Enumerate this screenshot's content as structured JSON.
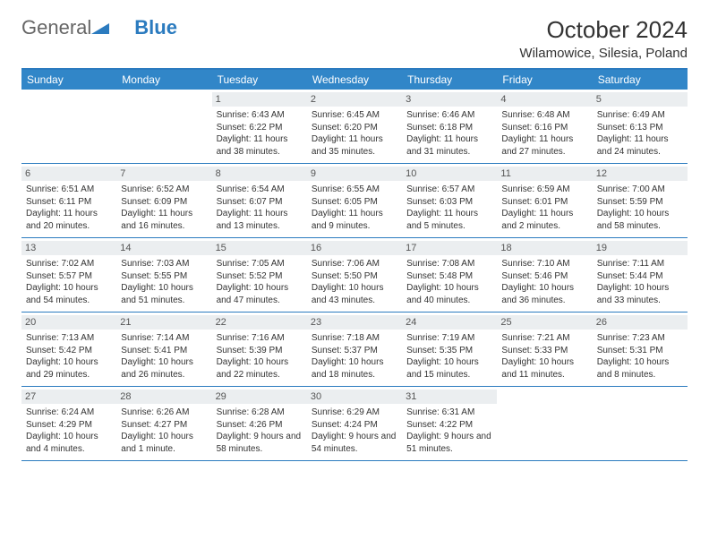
{
  "logo": {
    "text1": "General",
    "text2": "Blue"
  },
  "title": {
    "month": "October 2024",
    "location": "Wilamowice, Silesia, Poland"
  },
  "colors": {
    "header_bg": "#3186c8",
    "border": "#2b7bbf",
    "daynum_bg": "#ebeef0",
    "text": "#333333",
    "logo_gray": "#666666",
    "logo_blue": "#2b7bbf",
    "background": "#ffffff"
  },
  "typography": {
    "title_fontsize": 26,
    "location_fontsize": 15,
    "dayhead_fontsize": 12,
    "daynum_fontsize": 11,
    "info_fontsize": 10
  },
  "day_names": [
    "Sunday",
    "Monday",
    "Tuesday",
    "Wednesday",
    "Thursday",
    "Friday",
    "Saturday"
  ],
  "weeks": [
    [
      {
        "n": "",
        "sr": "",
        "ss": "",
        "dl": ""
      },
      {
        "n": "",
        "sr": "",
        "ss": "",
        "dl": ""
      },
      {
        "n": "1",
        "sr": "Sunrise: 6:43 AM",
        "ss": "Sunset: 6:22 PM",
        "dl": "Daylight: 11 hours and 38 minutes."
      },
      {
        "n": "2",
        "sr": "Sunrise: 6:45 AM",
        "ss": "Sunset: 6:20 PM",
        "dl": "Daylight: 11 hours and 35 minutes."
      },
      {
        "n": "3",
        "sr": "Sunrise: 6:46 AM",
        "ss": "Sunset: 6:18 PM",
        "dl": "Daylight: 11 hours and 31 minutes."
      },
      {
        "n": "4",
        "sr": "Sunrise: 6:48 AM",
        "ss": "Sunset: 6:16 PM",
        "dl": "Daylight: 11 hours and 27 minutes."
      },
      {
        "n": "5",
        "sr": "Sunrise: 6:49 AM",
        "ss": "Sunset: 6:13 PM",
        "dl": "Daylight: 11 hours and 24 minutes."
      }
    ],
    [
      {
        "n": "6",
        "sr": "Sunrise: 6:51 AM",
        "ss": "Sunset: 6:11 PM",
        "dl": "Daylight: 11 hours and 20 minutes."
      },
      {
        "n": "7",
        "sr": "Sunrise: 6:52 AM",
        "ss": "Sunset: 6:09 PM",
        "dl": "Daylight: 11 hours and 16 minutes."
      },
      {
        "n": "8",
        "sr": "Sunrise: 6:54 AM",
        "ss": "Sunset: 6:07 PM",
        "dl": "Daylight: 11 hours and 13 minutes."
      },
      {
        "n": "9",
        "sr": "Sunrise: 6:55 AM",
        "ss": "Sunset: 6:05 PM",
        "dl": "Daylight: 11 hours and 9 minutes."
      },
      {
        "n": "10",
        "sr": "Sunrise: 6:57 AM",
        "ss": "Sunset: 6:03 PM",
        "dl": "Daylight: 11 hours and 5 minutes."
      },
      {
        "n": "11",
        "sr": "Sunrise: 6:59 AM",
        "ss": "Sunset: 6:01 PM",
        "dl": "Daylight: 11 hours and 2 minutes."
      },
      {
        "n": "12",
        "sr": "Sunrise: 7:00 AM",
        "ss": "Sunset: 5:59 PM",
        "dl": "Daylight: 10 hours and 58 minutes."
      }
    ],
    [
      {
        "n": "13",
        "sr": "Sunrise: 7:02 AM",
        "ss": "Sunset: 5:57 PM",
        "dl": "Daylight: 10 hours and 54 minutes."
      },
      {
        "n": "14",
        "sr": "Sunrise: 7:03 AM",
        "ss": "Sunset: 5:55 PM",
        "dl": "Daylight: 10 hours and 51 minutes."
      },
      {
        "n": "15",
        "sr": "Sunrise: 7:05 AM",
        "ss": "Sunset: 5:52 PM",
        "dl": "Daylight: 10 hours and 47 minutes."
      },
      {
        "n": "16",
        "sr": "Sunrise: 7:06 AM",
        "ss": "Sunset: 5:50 PM",
        "dl": "Daylight: 10 hours and 43 minutes."
      },
      {
        "n": "17",
        "sr": "Sunrise: 7:08 AM",
        "ss": "Sunset: 5:48 PM",
        "dl": "Daylight: 10 hours and 40 minutes."
      },
      {
        "n": "18",
        "sr": "Sunrise: 7:10 AM",
        "ss": "Sunset: 5:46 PM",
        "dl": "Daylight: 10 hours and 36 minutes."
      },
      {
        "n": "19",
        "sr": "Sunrise: 7:11 AM",
        "ss": "Sunset: 5:44 PM",
        "dl": "Daylight: 10 hours and 33 minutes."
      }
    ],
    [
      {
        "n": "20",
        "sr": "Sunrise: 7:13 AM",
        "ss": "Sunset: 5:42 PM",
        "dl": "Daylight: 10 hours and 29 minutes."
      },
      {
        "n": "21",
        "sr": "Sunrise: 7:14 AM",
        "ss": "Sunset: 5:41 PM",
        "dl": "Daylight: 10 hours and 26 minutes."
      },
      {
        "n": "22",
        "sr": "Sunrise: 7:16 AM",
        "ss": "Sunset: 5:39 PM",
        "dl": "Daylight: 10 hours and 22 minutes."
      },
      {
        "n": "23",
        "sr": "Sunrise: 7:18 AM",
        "ss": "Sunset: 5:37 PM",
        "dl": "Daylight: 10 hours and 18 minutes."
      },
      {
        "n": "24",
        "sr": "Sunrise: 7:19 AM",
        "ss": "Sunset: 5:35 PM",
        "dl": "Daylight: 10 hours and 15 minutes."
      },
      {
        "n": "25",
        "sr": "Sunrise: 7:21 AM",
        "ss": "Sunset: 5:33 PM",
        "dl": "Daylight: 10 hours and 11 minutes."
      },
      {
        "n": "26",
        "sr": "Sunrise: 7:23 AM",
        "ss": "Sunset: 5:31 PM",
        "dl": "Daylight: 10 hours and 8 minutes."
      }
    ],
    [
      {
        "n": "27",
        "sr": "Sunrise: 6:24 AM",
        "ss": "Sunset: 4:29 PM",
        "dl": "Daylight: 10 hours and 4 minutes."
      },
      {
        "n": "28",
        "sr": "Sunrise: 6:26 AM",
        "ss": "Sunset: 4:27 PM",
        "dl": "Daylight: 10 hours and 1 minute."
      },
      {
        "n": "29",
        "sr": "Sunrise: 6:28 AM",
        "ss": "Sunset: 4:26 PM",
        "dl": "Daylight: 9 hours and 58 minutes."
      },
      {
        "n": "30",
        "sr": "Sunrise: 6:29 AM",
        "ss": "Sunset: 4:24 PM",
        "dl": "Daylight: 9 hours and 54 minutes."
      },
      {
        "n": "31",
        "sr": "Sunrise: 6:31 AM",
        "ss": "Sunset: 4:22 PM",
        "dl": "Daylight: 9 hours and 51 minutes."
      },
      {
        "n": "",
        "sr": "",
        "ss": "",
        "dl": ""
      },
      {
        "n": "",
        "sr": "",
        "ss": "",
        "dl": ""
      }
    ]
  ]
}
